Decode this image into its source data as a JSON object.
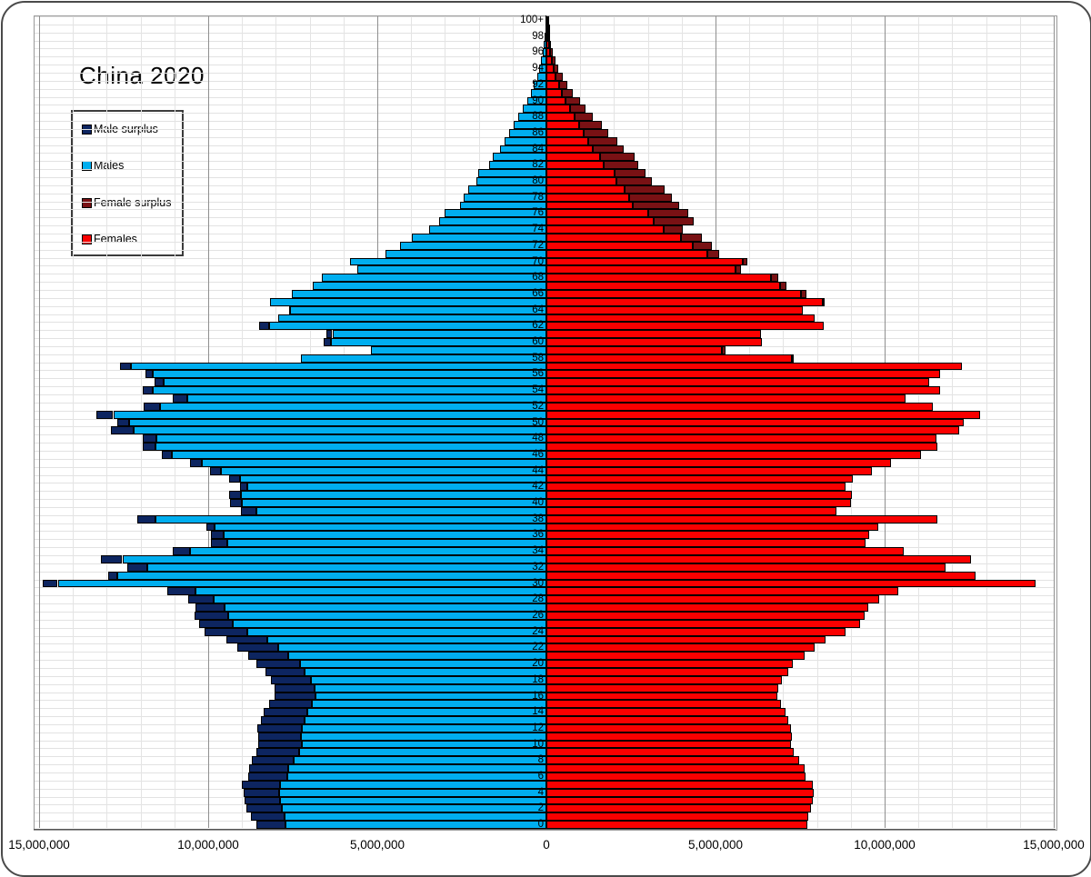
{
  "title": "China 2020",
  "legend": [
    {
      "label": "Male surplus",
      "color": "#0D2560"
    },
    {
      "label": "Males",
      "color": "#00AEEF"
    },
    {
      "label": "Female surplus",
      "color": "#791114"
    },
    {
      "label": "Females",
      "color": "#FA0000"
    }
  ],
  "chart_data": {
    "type": "bar",
    "subtype": "population-pyramid",
    "title": "China 2020",
    "unit": "persons (millions)",
    "orientation": "horizontal, males left of center, females right of center",
    "x_axis": {
      "tick_labels": [
        "15,000,000",
        "10,000,000",
        "5,000,000",
        "0",
        "5,000,000",
        "10,000,000",
        "15,000,000"
      ],
      "tick_values_millions": [
        -15,
        -10,
        -5,
        0,
        5,
        10,
        15
      ],
      "minor_gridline_step_millions": 1,
      "major_gridline_step_millions": 5,
      "grid": true
    },
    "y_axis": {
      "ages": "single years 0 to 100+",
      "tick_step_years": 2,
      "top_label": "100+",
      "bottom_label": "0",
      "label_position": "center column"
    },
    "legend_position": "upper-left box",
    "colors": {
      "males": "#00AEEF",
      "male_surplus": "#0D2560",
      "females": "#FA0000",
      "female_surplus": "#791114"
    },
    "rendering_rule": "bright segment length = min(males,females) on both sides; dark navy tip = male surplus (males-females); dark red tip = female surplus (females-males)",
    "series": {
      "males_millions": [
        8.57,
        8.74,
        8.88,
        8.93,
        8.96,
        9.0,
        8.82,
        8.79,
        8.72,
        8.59,
        8.51,
        8.51,
        8.54,
        8.43,
        8.35,
        8.19,
        8.05,
        8.04,
        8.14,
        8.32,
        8.58,
        8.82,
        9.14,
        9.47,
        10.11,
        10.28,
        10.4,
        10.39,
        10.6,
        11.21,
        14.9,
        12.95,
        12.4,
        13.17,
        11.06,
        9.91,
        9.91,
        10.06,
        12.1,
        9.03,
        9.36,
        9.37,
        9.06,
        9.38,
        9.94,
        10.53,
        11.37,
        11.93,
        11.93,
        12.87,
        12.7,
        13.3,
        11.92,
        11.05,
        11.94,
        11.6,
        11.85,
        12.62,
        7.25,
        5.19,
        6.59,
        6.5,
        8.49,
        7.93,
        7.62,
        8.16,
        7.53,
        6.92,
        6.63,
        5.6,
        5.81,
        4.75,
        4.33,
        3.98,
        3.47,
        3.17,
        3.0,
        2.55,
        2.45,
        2.31,
        2.07,
        2.02,
        1.69,
        1.59,
        1.37,
        1.24,
        1.1,
        0.96,
        0.83,
        0.69,
        0.56,
        0.46,
        0.38,
        0.28,
        0.21,
        0.15,
        0.11,
        0.08,
        0.06,
        0.04,
        0.02
      ],
      "females_millions": [
        7.72,
        7.74,
        7.82,
        7.88,
        7.9,
        7.88,
        7.66,
        7.63,
        7.47,
        7.31,
        7.23,
        7.26,
        7.23,
        7.14,
        7.08,
        6.94,
        6.83,
        6.85,
        6.96,
        7.14,
        7.28,
        7.63,
        7.93,
        8.26,
        8.84,
        9.27,
        9.41,
        9.52,
        9.83,
        10.39,
        14.45,
        12.7,
        11.8,
        12.54,
        10.55,
        9.44,
        9.54,
        9.81,
        11.55,
        8.58,
        9.01,
        9.04,
        8.84,
        9.07,
        9.63,
        10.19,
        11.07,
        11.55,
        11.53,
        12.2,
        12.34,
        12.81,
        11.42,
        10.62,
        11.64,
        11.31,
        11.64,
        12.29,
        7.28,
        5.3,
        6.38,
        6.33,
        8.21,
        7.94,
        7.59,
        8.21,
        7.68,
        7.09,
        6.87,
        5.75,
        5.93,
        5.1,
        4.88,
        4.59,
        4.04,
        4.35,
        4.2,
        3.92,
        3.71,
        3.49,
        3.11,
        2.93,
        2.71,
        2.6,
        2.28,
        2.1,
        1.83,
        1.63,
        1.37,
        1.16,
        1.0,
        0.78,
        0.62,
        0.48,
        0.36,
        0.27,
        0.18,
        0.13,
        0.09,
        0.06,
        0.04
      ]
    }
  }
}
